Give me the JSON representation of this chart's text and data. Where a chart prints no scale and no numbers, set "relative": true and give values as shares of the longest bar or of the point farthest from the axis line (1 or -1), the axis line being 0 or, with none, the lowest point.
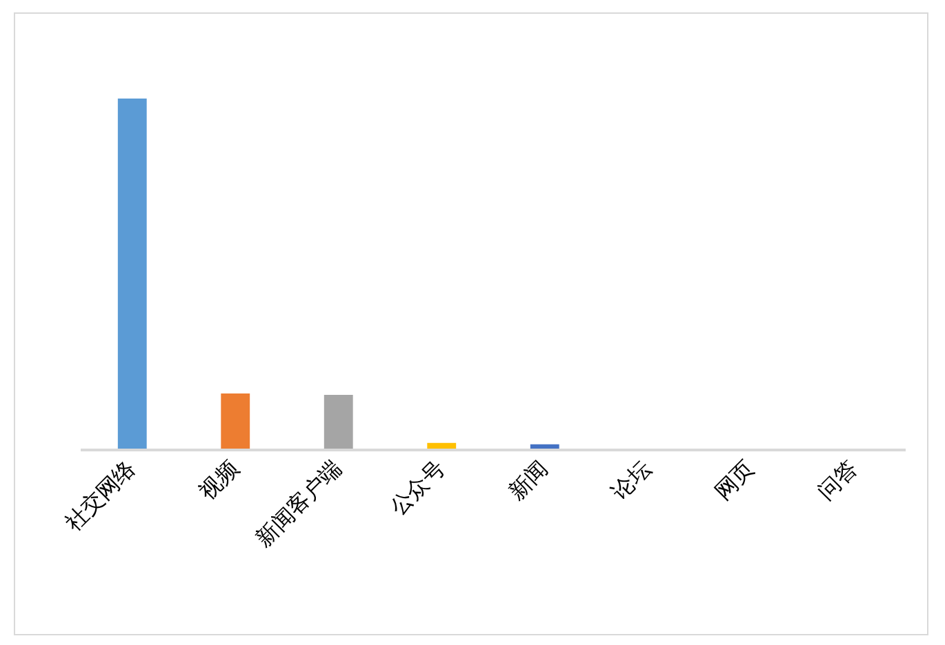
{
  "chart_data": {
    "type": "bar",
    "relative": true,
    "categories": [
      "社交网络",
      "视频",
      "新闻客户端",
      "公众号",
      "新闻",
      "论坛",
      "网页",
      "问答"
    ],
    "values": [
      1,
      0.161,
      0.157,
      0.02,
      0.016,
      0,
      0,
      0
    ],
    "colors": [
      "#5b9bd5",
      "#ed7d31",
      "#a5a5a5",
      "#ffc000",
      "#4472c4",
      "#70ad47",
      "#255e91",
      "#9e480e"
    ]
  }
}
